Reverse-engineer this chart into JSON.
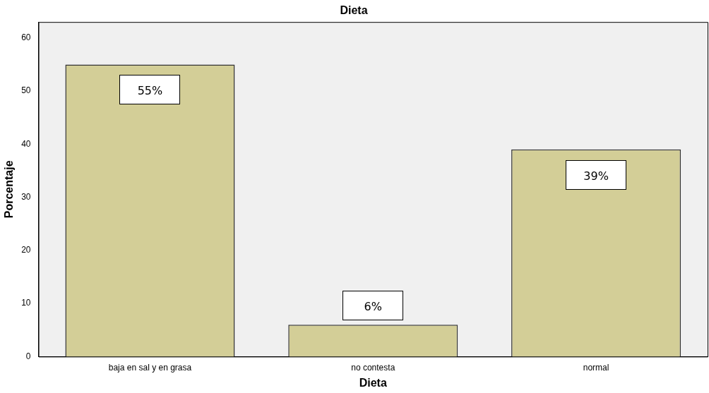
{
  "chart_data": {
    "type": "bar",
    "title": "Dieta",
    "xlabel": "Dieta",
    "ylabel": "Porcentaje",
    "categories": [
      "baja en sal y en grasa",
      "no contesta",
      "normal"
    ],
    "values": [
      55,
      6,
      39
    ],
    "value_labels": [
      "55%",
      "6%",
      "39%"
    ],
    "color": "#d3ce97",
    "ylim": [
      0,
      63
    ],
    "yticks": [
      0,
      10,
      20,
      30,
      40,
      50,
      60
    ],
    "grid": false,
    "legend": false
  }
}
